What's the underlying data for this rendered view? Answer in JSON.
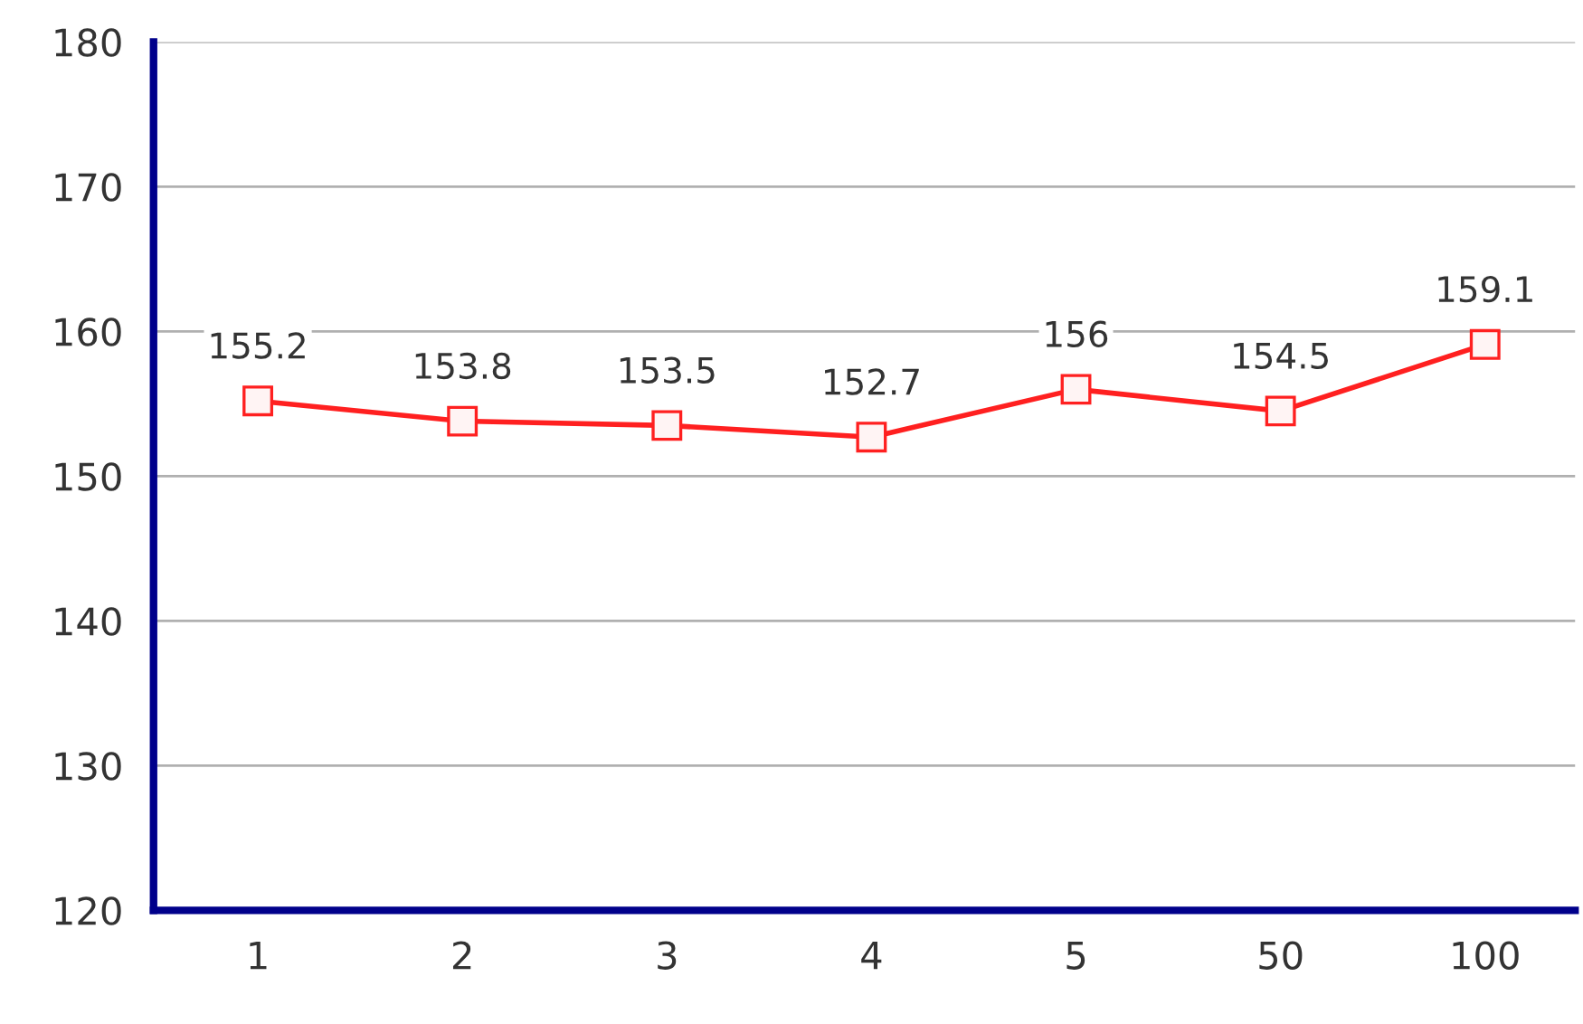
{
  "chart_data": {
    "type": "line",
    "categories": [
      "1",
      "2",
      "3",
      "4",
      "5",
      "50",
      "100"
    ],
    "series": [
      {
        "color": "#ff2020",
        "values": [
          155.2,
          153.8,
          153.5,
          152.7,
          156,
          154.5,
          159.1
        ]
      }
    ],
    "ylim": [
      120,
      180
    ],
    "yticks": [
      120,
      130,
      140,
      150,
      160,
      170,
      180
    ],
    "grid": "y",
    "marker": "square",
    "line_style": "solid",
    "data_labels": true
  }
}
